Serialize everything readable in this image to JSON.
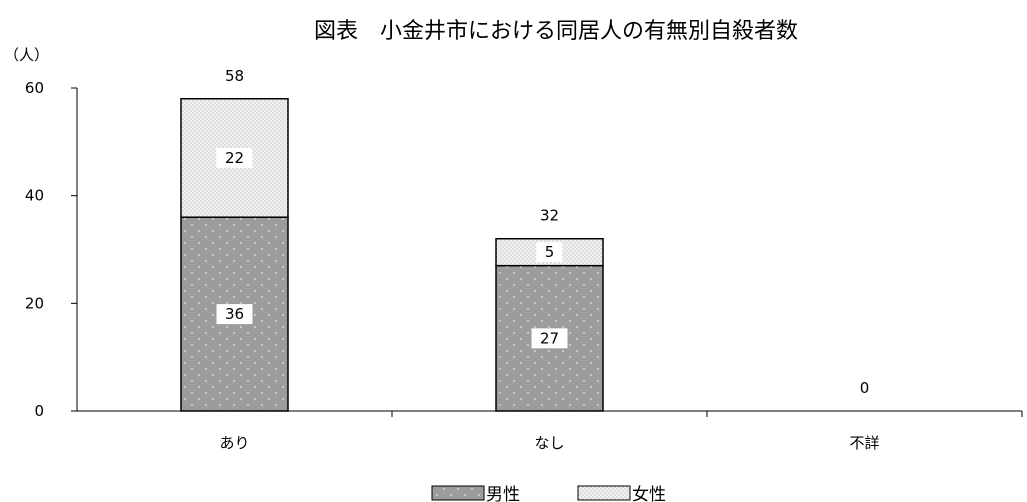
{
  "chart_data": {
    "type": "bar",
    "stacked": true,
    "title": "図表　小金井市における同居人の有無別自殺者数",
    "y_unit": "（人）",
    "categories": [
      "あり",
      "なし",
      "不詳"
    ],
    "series": [
      {
        "name": "男性",
        "values": [
          36,
          27,
          0
        ],
        "fill": "#9c9c9c"
      },
      {
        "name": "女性",
        "values": [
          22,
          5,
          0
        ],
        "fill": "#e8e8e8"
      }
    ],
    "totals": [
      58,
      32,
      0
    ],
    "ylim": [
      0,
      60
    ],
    "yticks": [
      0,
      20,
      40,
      60
    ],
    "grid": false,
    "legend_position": "bottom"
  }
}
